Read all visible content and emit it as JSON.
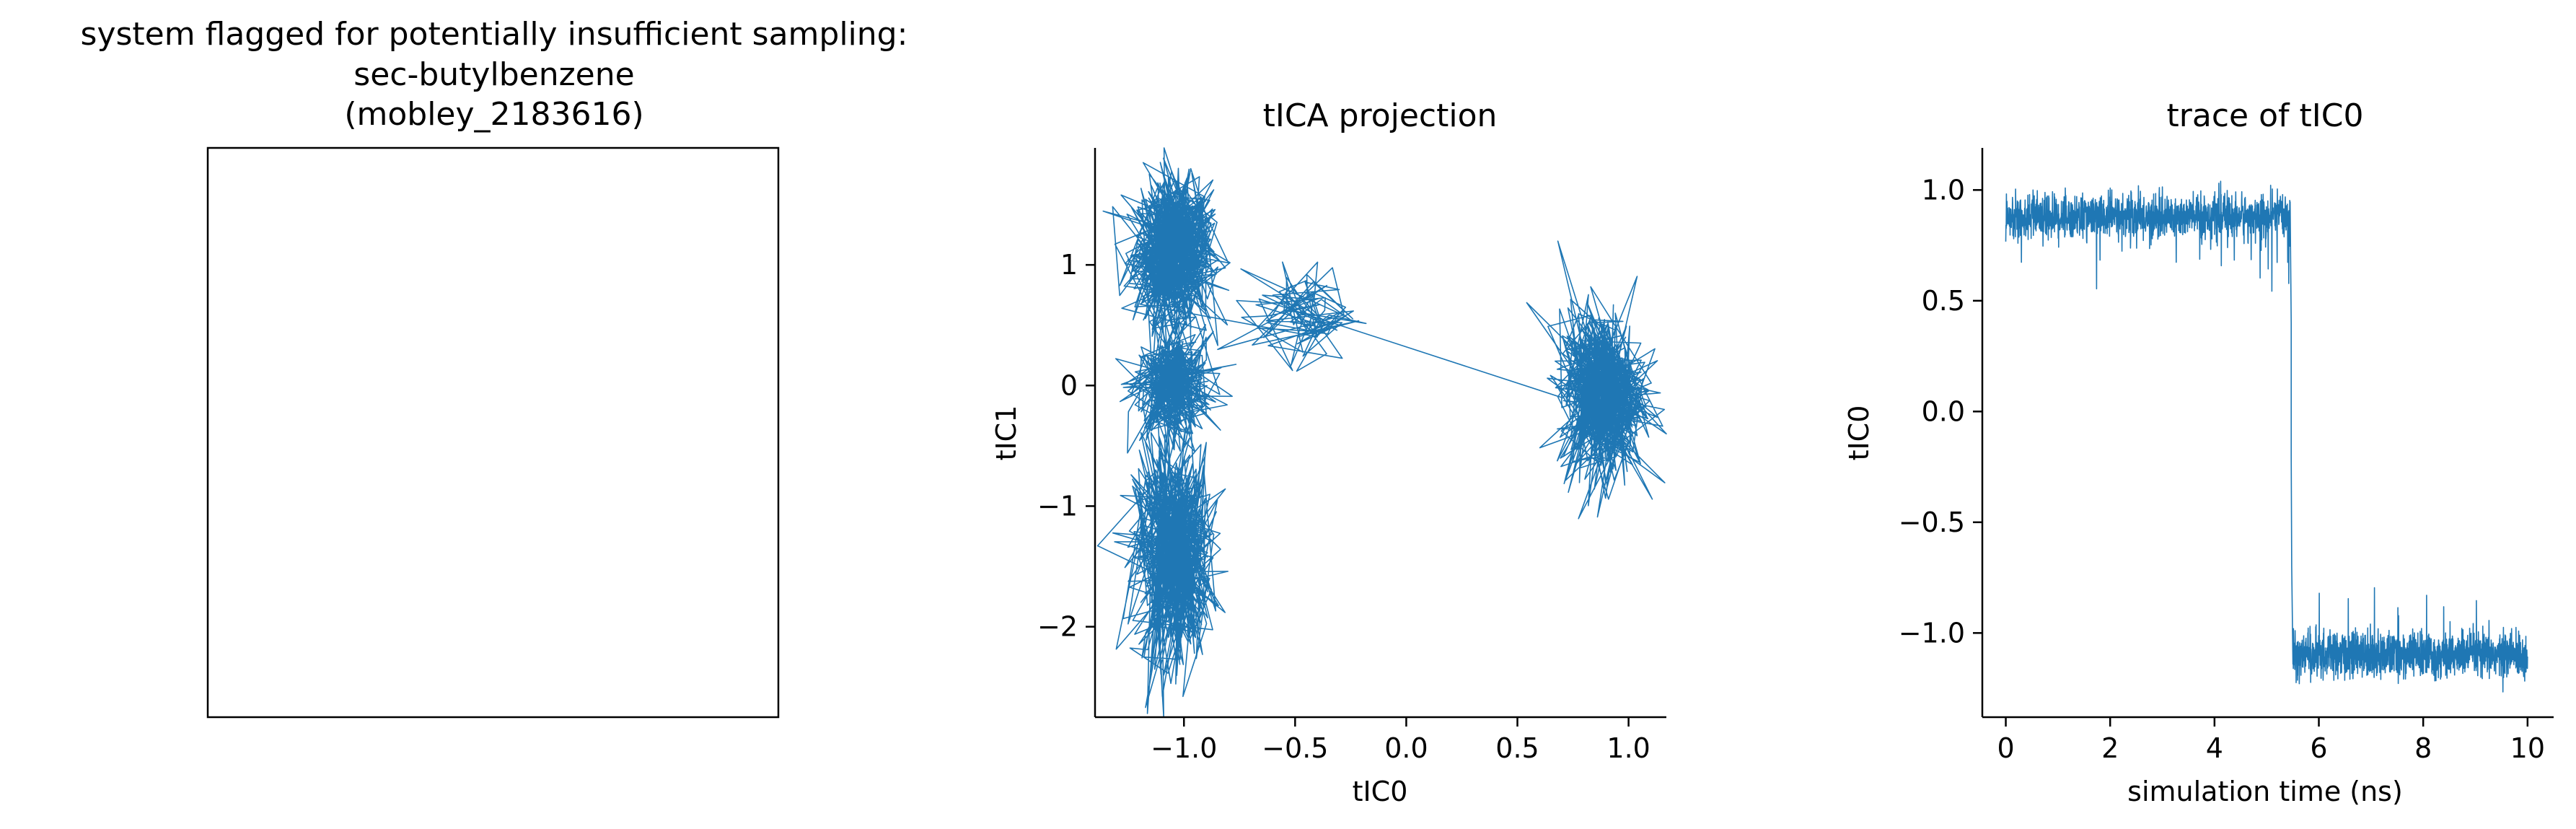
{
  "chart_data": [
    {
      "type": "other",
      "title_lines": [
        "system flagged for potentially insufficient sampling:",
        "sec-butylbenzene",
        "(mobley_2183616)"
      ]
    },
    {
      "type": "line",
      "title": "tICA projection",
      "xlabel": "tIC0",
      "ylabel": "tIC1",
      "xlim": [
        -1.4,
        1.17
      ],
      "ylim": [
        -2.75,
        1.97
      ],
      "xticks": [
        -1.0,
        -0.5,
        0.0,
        0.5,
        1.0
      ],
      "xtick_labels": [
        "−1.0",
        "−0.5",
        "0.0",
        "0.5",
        "1.0"
      ],
      "yticks": [
        -2,
        -1,
        0,
        1
      ],
      "ytick_labels": [
        "−2",
        "−1",
        "0",
        "1"
      ],
      "color": "#1f77b4",
      "clusters": [
        {
          "x": -1.05,
          "y": 1.1,
          "sx": 0.09,
          "sy": 0.3
        },
        {
          "x": -1.05,
          "y": 0.0,
          "sx": 0.09,
          "sy": 0.22
        },
        {
          "x": -1.05,
          "y": -1.4,
          "sx": 0.09,
          "sy": 0.45
        },
        {
          "x": -0.45,
          "y": 0.6,
          "sx": 0.12,
          "sy": 0.2
        },
        {
          "x": 0.88,
          "y": -0.05,
          "sx": 0.1,
          "sy": 0.35
        }
      ]
    },
    {
      "type": "line",
      "title": "trace of tIC0",
      "xlabel": "simulation time (ns)",
      "ylabel": "tIC0",
      "xlim": [
        -0.45,
        10.5
      ],
      "ylim": [
        -1.38,
        1.19
      ],
      "xticks": [
        0,
        2,
        4,
        6,
        8,
        10
      ],
      "xtick_labels": [
        "0",
        "2",
        "4",
        "6",
        "8",
        "10"
      ],
      "yticks": [
        -1.0,
        -0.5,
        0.0,
        0.5,
        1.0
      ],
      "ytick_labels": [
        "−1.0",
        "−0.5",
        "0.0",
        "0.5",
        "1.0"
      ],
      "color": "#1f77b4",
      "segments": [
        {
          "t_start": 0.0,
          "t_end": 5.45,
          "level": 0.88,
          "noise": 0.05
        },
        {
          "t_start": 5.5,
          "t_end": 10.0,
          "level": -1.1,
          "noise": 0.05
        }
      ],
      "transition_time": 5.47
    }
  ]
}
